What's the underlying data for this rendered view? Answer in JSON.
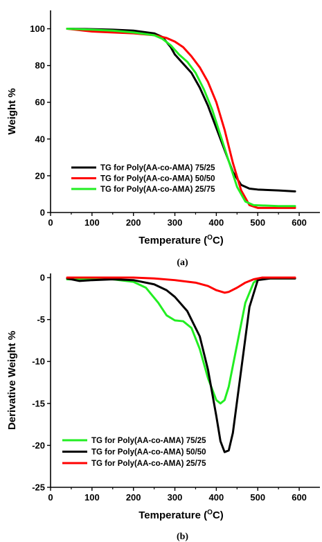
{
  "chart_data": [
    {
      "type": "line",
      "caption": "(a)",
      "xlabel": "Temperature (",
      "xlabel_sup": "O",
      "xlabel_end": "C)",
      "ylabel": "Weight %",
      "xlim": [
        0,
        650
      ],
      "ylim": [
        0,
        110
      ],
      "xticks": [
        0,
        100,
        200,
        300,
        400,
        500,
        600
      ],
      "yticks": [
        0,
        20,
        40,
        60,
        80,
        100
      ],
      "legend_position": "lower-left",
      "series": [
        {
          "name": "TG for Poly(AA-co-AMA) 75/25",
          "color": "#000000",
          "x": [
            40,
            100,
            150,
            200,
            250,
            270,
            290,
            300,
            320,
            340,
            360,
            380,
            400,
            420,
            440,
            460,
            480,
            500,
            550,
            590
          ],
          "y": [
            100,
            99.8,
            99.5,
            99,
            97.5,
            95.5,
            90,
            86,
            81,
            76,
            68,
            58,
            46,
            34,
            22,
            15,
            13,
            12.5,
            12,
            11.5
          ]
        },
        {
          "name": "TG for Poly(AA-co-AMA) 50/50",
          "color": "#ff0000",
          "x": [
            40,
            100,
            150,
            200,
            250,
            280,
            300,
            320,
            340,
            360,
            380,
            400,
            420,
            440,
            460,
            480,
            500,
            550,
            590
          ],
          "y": [
            100,
            98.5,
            98,
            97.5,
            96.5,
            95,
            93,
            90,
            85,
            79,
            71,
            60,
            45,
            27,
            12,
            4,
            2.5,
            2.5,
            2.5
          ]
        },
        {
          "name": "TG for Poly(AA-co-AMA) 25/75",
          "color": "#22ee22",
          "x": [
            40,
            100,
            150,
            200,
            250,
            270,
            290,
            310,
            330,
            350,
            370,
            390,
            410,
            430,
            450,
            470,
            490,
            550,
            590
          ],
          "y": [
            100,
            99.5,
            99,
            98,
            96.5,
            94.5,
            91,
            86,
            82,
            76,
            67,
            56,
            42,
            28,
            14,
            6,
            4,
            3.5,
            3.5
          ]
        }
      ]
    },
    {
      "type": "line",
      "caption": "(b)",
      "xlabel": "Temperature (",
      "xlabel_sup": "O",
      "xlabel_end": "C)",
      "ylabel": "Derivative Weight %",
      "xlim": [
        0,
        650
      ],
      "ylim": [
        -25,
        0.5
      ],
      "xticks": [
        0,
        100,
        200,
        300,
        400,
        500,
        600
      ],
      "yticks": [
        0,
        -5,
        -10,
        -15,
        -20,
        -25
      ],
      "legend_position": "lower-left",
      "series": [
        {
          "name": "TG for Poly(AA-co-AMA) 75/25",
          "color": "#22ee22",
          "x": [
            40,
            100,
            150,
            200,
            230,
            260,
            280,
            300,
            320,
            340,
            360,
            380,
            400,
            410,
            420,
            430,
            450,
            470,
            490,
            500,
            530,
            590
          ],
          "y": [
            -0.2,
            -0.2,
            -0.2,
            -0.5,
            -1.2,
            -3.0,
            -4.5,
            -5.1,
            -5.2,
            -6.0,
            -8.5,
            -12.0,
            -14.6,
            -15.0,
            -14.6,
            -13.0,
            -8.0,
            -3.0,
            -0.6,
            -0.2,
            -0.1,
            -0.1
          ]
        },
        {
          "name": "TG for Poly(AA-co-AMA) 50/50",
          "color": "#000000",
          "x": [
            40,
            70,
            100,
            150,
            200,
            250,
            280,
            300,
            330,
            360,
            380,
            400,
            410,
            420,
            430,
            440,
            460,
            480,
            500,
            530,
            590
          ],
          "y": [
            -0.1,
            -0.4,
            -0.3,
            -0.2,
            -0.3,
            -0.8,
            -1.5,
            -2.3,
            -4.0,
            -7.0,
            -11.0,
            -16.5,
            -19.5,
            -20.8,
            -20.6,
            -18.5,
            -11.0,
            -3.5,
            -0.3,
            -0.1,
            -0.1
          ]
        },
        {
          "name": "TG for Poly(AA-co-AMA) 25/75",
          "color": "#ff0000",
          "x": [
            40,
            100,
            200,
            250,
            300,
            350,
            380,
            400,
            420,
            430,
            450,
            470,
            490,
            510,
            550,
            590
          ],
          "y": [
            0,
            0,
            0,
            -0.1,
            -0.3,
            -0.6,
            -1.0,
            -1.5,
            -1.8,
            -1.7,
            -1.2,
            -0.6,
            -0.2,
            0,
            0,
            0
          ]
        }
      ]
    }
  ]
}
